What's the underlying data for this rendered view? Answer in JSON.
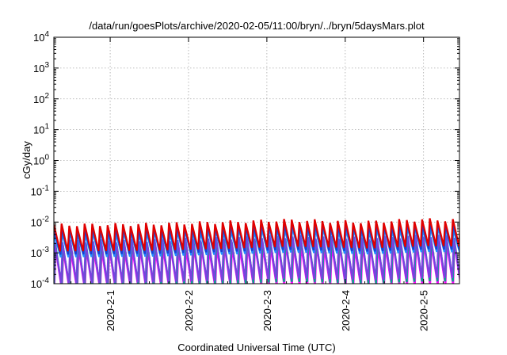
{
  "chart_data": {
    "type": "line",
    "title": "/data/run/goesPlots/archive/2020-02-05/11:00/bryn/../bryn/5daysMars.plot",
    "xlabel": "Coordinated Universal Time (UTC)",
    "ylabel": "cGy/day",
    "y_scale": "log",
    "ylim": [
      0.0001,
      10000
    ],
    "xlim": [
      "2020-01-31T06:45",
      "2020-02-05T11:00"
    ],
    "grid": true,
    "legend": "none",
    "x_ticks": [
      {
        "label": "2020-2-1",
        "value": "2020-02-01T00:00"
      },
      {
        "label": "2020-2-2",
        "value": "2020-02-02T00:00"
      },
      {
        "label": "2020-2-3",
        "value": "2020-02-03T00:00"
      },
      {
        "label": "2020-2-4",
        "value": "2020-02-04T00:00"
      },
      {
        "label": "2020-2-5",
        "value": "2020-02-05T00:00"
      }
    ],
    "y_ticks": [
      {
        "base": "10",
        "exp": "4",
        "value": 10000
      },
      {
        "base": "10",
        "exp": "3",
        "value": 1000
      },
      {
        "base": "10",
        "exp": "2",
        "value": 100
      },
      {
        "base": "10",
        "exp": "1",
        "value": 10
      },
      {
        "base": "10",
        "exp": "0",
        "value": 1
      },
      {
        "base": "10",
        "exp": "-1",
        "value": 0.1
      },
      {
        "base": "10",
        "exp": "-2",
        "value": 0.01
      },
      {
        "base": "10",
        "exp": "-3",
        "value": 0.001
      },
      {
        "base": "10",
        "exp": "-4",
        "value": 0.0001
      }
    ],
    "cycle_hours": 2.35,
    "series": [
      {
        "color": "#ff00ff",
        "peak": 0.0015,
        "trough": 7e-05,
        "phase_hours": 0.55
      },
      {
        "color": "#00aa88",
        "peak": 0.0025,
        "trough": 0.0001,
        "phase_hours": 0.45
      },
      {
        "color": "#7a40e0",
        "peak": 0.003,
        "trough": 0.00013,
        "phase_hours": 0.3
      },
      {
        "color": "#1e90ff",
        "peak": 0.0055,
        "trough": 0.0009,
        "phase_hours": 0.2
      },
      {
        "color": "#1a3fd0",
        "peak": 0.0075,
        "trough": 0.0011,
        "phase_hours": 0.1
      },
      {
        "color": "#e00000",
        "peak": 0.01,
        "trough": 0.0014,
        "phase_hours": 0.0
      }
    ],
    "level_trend": [
      {
        "t": "2020-01-31T06:45",
        "f": 0.8
      },
      {
        "t": "2020-02-01T12:00",
        "f": 0.85
      },
      {
        "t": "2020-02-02T12:00",
        "f": 1.0
      },
      {
        "t": "2020-02-03T06:00",
        "f": 1.15
      },
      {
        "t": "2020-02-04T06:00",
        "f": 1.0
      },
      {
        "t": "2020-02-05T00:00",
        "f": 1.2
      },
      {
        "t": "2020-02-05T11:00",
        "f": 1.15
      }
    ]
  }
}
